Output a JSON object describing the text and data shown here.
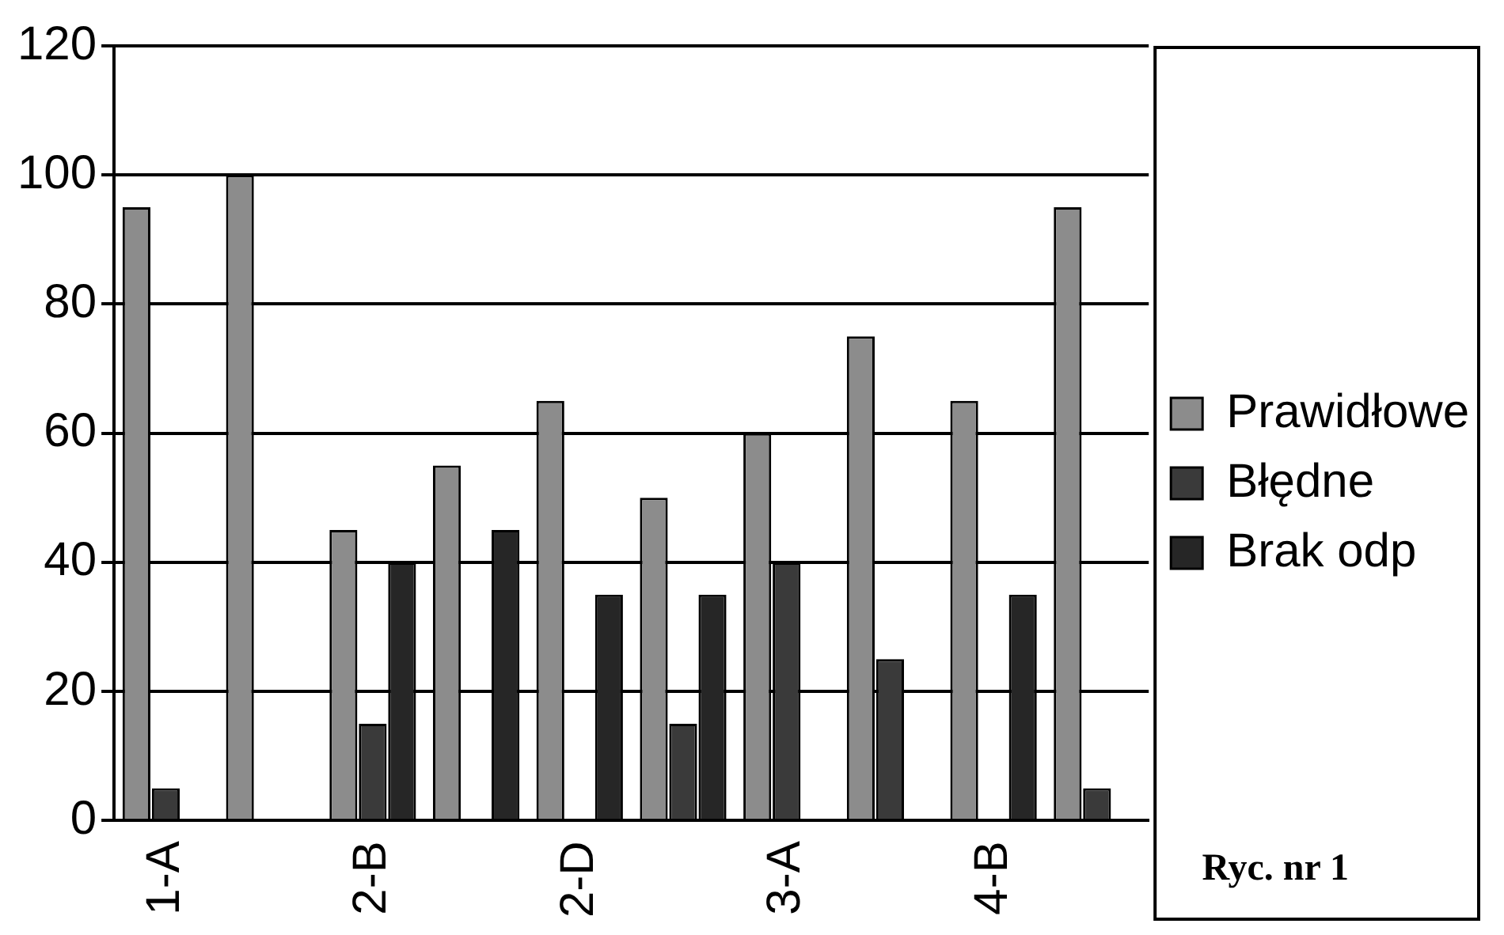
{
  "chart_data": {
    "type": "bar",
    "categories": [
      "1-A",
      null,
      "2-B",
      null,
      "2-D",
      null,
      "3-A",
      null,
      "4-B",
      null
    ],
    "series": [
      {
        "name": "Prawidłowe",
        "color": "#8c8c8c",
        "values": [
          95,
          100,
          45,
          55,
          65,
          50,
          60,
          75,
          65,
          95
        ]
      },
      {
        "name": "Błędne",
        "color": "#3a3a3a",
        "values": [
          5,
          0,
          15,
          0,
          0,
          15,
          40,
          25,
          0,
          5
        ]
      },
      {
        "name": "Brak odp",
        "color": "#262626",
        "values": [
          0,
          0,
          40,
          45,
          35,
          35,
          0,
          0,
          35,
          0
        ]
      }
    ],
    "ylim": [
      0,
      120
    ],
    "yticks": [
      0,
      20,
      40,
      60,
      80,
      100,
      120
    ],
    "grid": "y",
    "legend": "right",
    "annotations": [
      "Ryc. nr 1"
    ]
  }
}
